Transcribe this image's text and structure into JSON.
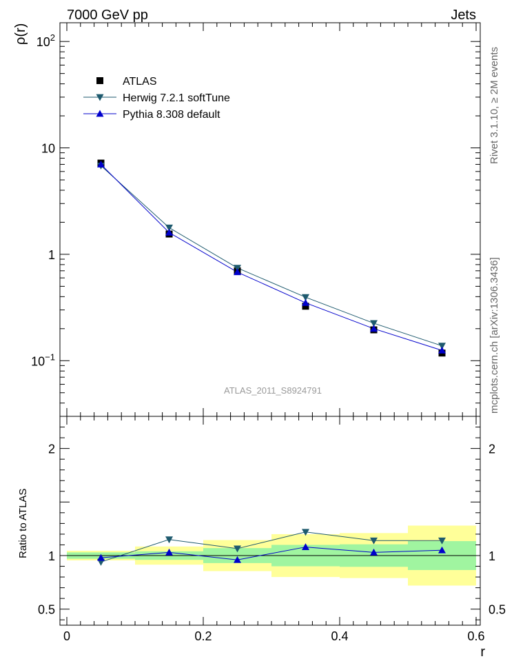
{
  "header": {
    "left": "7000 GeV pp",
    "right": "Jets"
  },
  "side_text": {
    "top": "Rivet 3.1.10, ≥ 2M events",
    "bottom": "mcplots.cern.ch [arXiv:1306.3436]"
  },
  "watermark": "ATLAS_2011_S8924791",
  "chart_data": [
    {
      "type": "scatter",
      "panel": "main",
      "ylabel": "ρ(r)",
      "xlabel": "",
      "xlim": [
        0,
        0.6
      ],
      "ylim": [
        0.03,
        150
      ],
      "yscale": "log",
      "yticks": [
        {
          "v": 0.1,
          "base": "10",
          "exp": "−1"
        },
        {
          "v": 1,
          "base": "1",
          "exp": ""
        },
        {
          "v": 10,
          "base": "10",
          "exp": ""
        },
        {
          "v": 100,
          "base": "10",
          "exp": "2"
        }
      ],
      "legend_position": "top-left",
      "x": [
        0.05,
        0.15,
        0.25,
        0.35,
        0.45,
        0.55
      ],
      "series": [
        {
          "name": "ATLAS",
          "marker": "square",
          "color": "#000000",
          "line": false,
          "values": [
            7.2,
            1.55,
            0.7,
            0.325,
            0.195,
            0.118
          ]
        },
        {
          "name": "Herwig 7.2.1 softTune",
          "marker": "triangle-down",
          "color": "#1e5a6e",
          "line": true,
          "values": [
            6.8,
            1.78,
            0.745,
            0.395,
            0.225,
            0.138
          ]
        },
        {
          "name": "Pythia 8.308 default",
          "marker": "triangle-up",
          "color": "#0000cc",
          "line": true,
          "values": [
            7.0,
            1.6,
            0.68,
            0.35,
            0.2,
            0.125
          ]
        }
      ]
    },
    {
      "type": "scatter",
      "panel": "ratio",
      "ylabel": "Ratio to ATLAS",
      "xlabel": "r",
      "xlim": [
        0,
        0.6
      ],
      "ylim": [
        0.35,
        2.3
      ],
      "xticks": [
        "0",
        "0.2",
        "0.4",
        "0.6"
      ],
      "yticks": [
        "0.5",
        "1",
        "2"
      ],
      "bands": [
        {
          "x0": 0.0,
          "x1": 0.1,
          "green": [
            0.97,
            1.03
          ],
          "yellow": [
            0.955,
            1.045
          ]
        },
        {
          "x0": 0.1,
          "x1": 0.2,
          "green": [
            0.96,
            1.04
          ],
          "yellow": [
            0.915,
            1.085
          ]
        },
        {
          "x0": 0.2,
          "x1": 0.3,
          "green": [
            0.93,
            1.07
          ],
          "yellow": [
            0.855,
            1.145
          ]
        },
        {
          "x0": 0.3,
          "x1": 0.4,
          "green": [
            0.9,
            1.1
          ],
          "yellow": [
            0.8,
            1.2
          ]
        },
        {
          "x0": 0.4,
          "x1": 0.5,
          "green": [
            0.895,
            1.105
          ],
          "yellow": [
            0.79,
            1.21
          ]
        },
        {
          "x0": 0.5,
          "x1": 0.6,
          "green": [
            0.865,
            1.135
          ],
          "yellow": [
            0.72,
            1.28
          ]
        }
      ],
      "band_colors": {
        "green": "#a0f5a0",
        "yellow": "#ffff99"
      },
      "x": [
        0.05,
        0.15,
        0.25,
        0.35,
        0.45,
        0.55
      ],
      "series": [
        {
          "name": "Herwig 7.2.1 softTune",
          "marker": "triangle-down",
          "color": "#1e5a6e",
          "values": [
            0.94,
            1.15,
            1.065,
            1.22,
            1.14,
            1.14
          ]
        },
        {
          "name": "Pythia 8.308 default",
          "marker": "triangle-up",
          "color": "#0000cc",
          "values": [
            0.98,
            1.03,
            0.96,
            1.08,
            1.03,
            1.05
          ]
        }
      ]
    }
  ]
}
